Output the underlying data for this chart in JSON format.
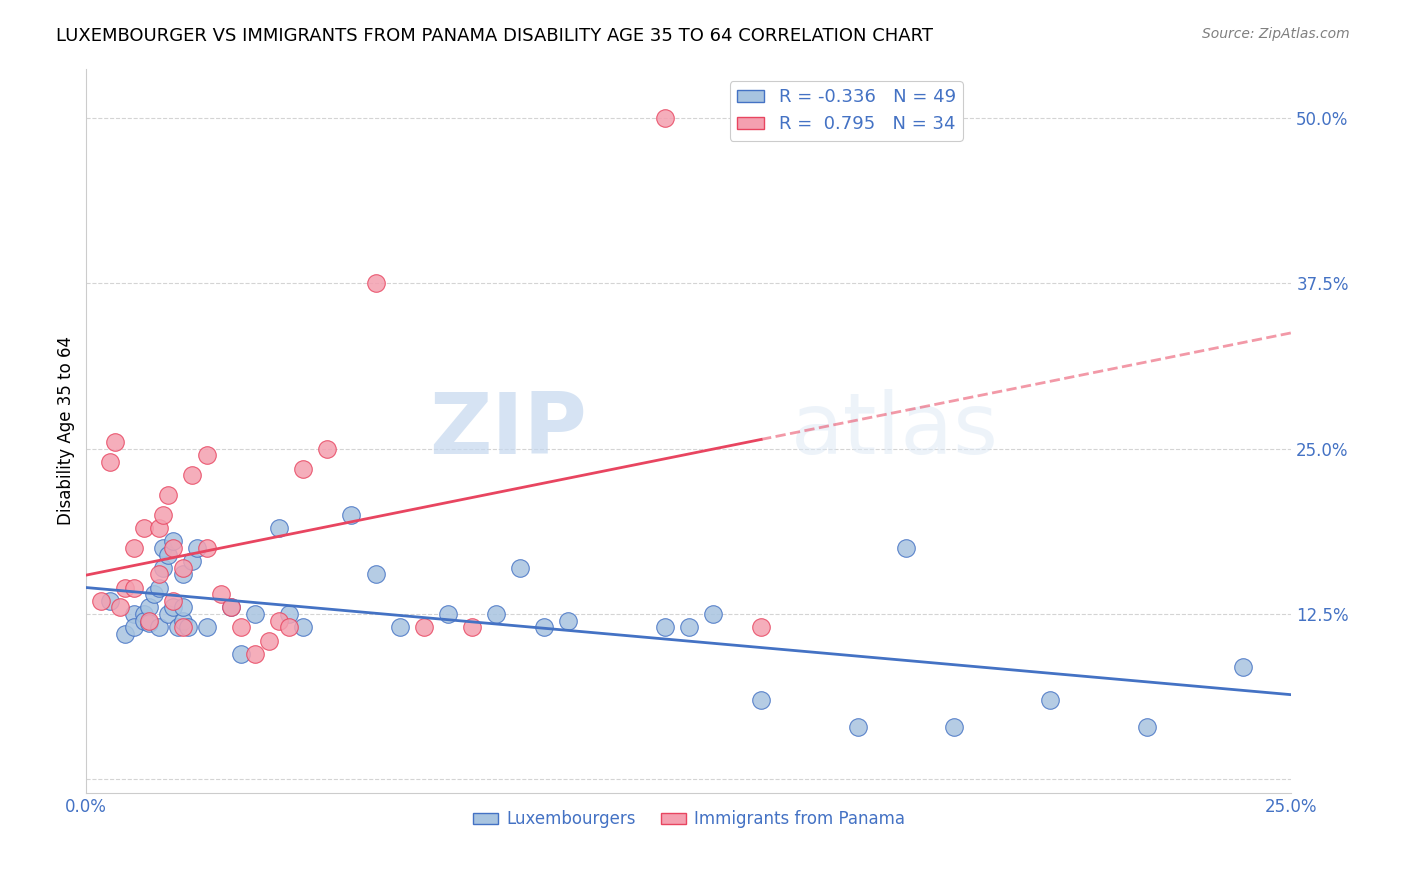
{
  "title": "LUXEMBOURGER VS IMMIGRANTS FROM PANAMA DISABILITY AGE 35 TO 64 CORRELATION CHART",
  "source": "Source: ZipAtlas.com",
  "xlabel": "",
  "ylabel": "Disability Age 35 to 64",
  "legend_label_1": "Luxembourgers",
  "legend_label_2": "Immigrants from Panama",
  "r1": -0.336,
  "n1": 49,
  "r2": 0.795,
  "n2": 34,
  "color1": "#a8c4e0",
  "color2": "#f4a0b0",
  "line_color1": "#4472c4",
  "line_color2": "#e84560",
  "xlim": [
    0.0,
    0.25
  ],
  "ylim": [
    -0.01,
    0.5375
  ],
  "xticks": [
    0.0,
    0.05,
    0.1,
    0.15,
    0.2,
    0.25
  ],
  "yticks": [
    0.0,
    0.125,
    0.25,
    0.375,
    0.5
  ],
  "xticklabels": [
    "0.0%",
    "",
    "",
    "",
    "",
    "25.0%"
  ],
  "yticklabels": [
    "",
    "12.5%",
    "25.0%",
    "37.5%",
    "50.0%"
  ],
  "blue_x": [
    0.005,
    0.008,
    0.01,
    0.01,
    0.012,
    0.012,
    0.013,
    0.013,
    0.014,
    0.015,
    0.015,
    0.016,
    0.016,
    0.017,
    0.017,
    0.018,
    0.018,
    0.019,
    0.02,
    0.02,
    0.02,
    0.021,
    0.022,
    0.023,
    0.025,
    0.03,
    0.032,
    0.035,
    0.04,
    0.042,
    0.045,
    0.055,
    0.06,
    0.065,
    0.075,
    0.085,
    0.09,
    0.095,
    0.1,
    0.12,
    0.125,
    0.13,
    0.14,
    0.16,
    0.17,
    0.18,
    0.2,
    0.22,
    0.24
  ],
  "blue_y": [
    0.135,
    0.11,
    0.125,
    0.115,
    0.125,
    0.12,
    0.13,
    0.118,
    0.14,
    0.145,
    0.115,
    0.175,
    0.16,
    0.17,
    0.125,
    0.18,
    0.13,
    0.115,
    0.12,
    0.155,
    0.13,
    0.115,
    0.165,
    0.175,
    0.115,
    0.13,
    0.095,
    0.125,
    0.19,
    0.125,
    0.115,
    0.2,
    0.155,
    0.115,
    0.125,
    0.125,
    0.16,
    0.115,
    0.12,
    0.115,
    0.115,
    0.125,
    0.06,
    0.04,
    0.175,
    0.04,
    0.06,
    0.04,
    0.085
  ],
  "pink_x": [
    0.003,
    0.005,
    0.006,
    0.007,
    0.008,
    0.01,
    0.01,
    0.012,
    0.013,
    0.015,
    0.015,
    0.016,
    0.017,
    0.018,
    0.018,
    0.02,
    0.02,
    0.022,
    0.025,
    0.025,
    0.028,
    0.03,
    0.032,
    0.035,
    0.038,
    0.04,
    0.042,
    0.045,
    0.05,
    0.06,
    0.07,
    0.08,
    0.12,
    0.14
  ],
  "pink_y": [
    0.135,
    0.24,
    0.255,
    0.13,
    0.145,
    0.175,
    0.145,
    0.19,
    0.12,
    0.19,
    0.155,
    0.2,
    0.215,
    0.175,
    0.135,
    0.16,
    0.115,
    0.23,
    0.245,
    0.175,
    0.14,
    0.13,
    0.115,
    0.095,
    0.105,
    0.12,
    0.115,
    0.235,
    0.25,
    0.375,
    0.115,
    0.115,
    0.5,
    0.115
  ],
  "watermark_zip": "ZIP",
  "watermark_atlas": "atlas",
  "background_color": "#ffffff",
  "grid_color": "#d0d0d0"
}
